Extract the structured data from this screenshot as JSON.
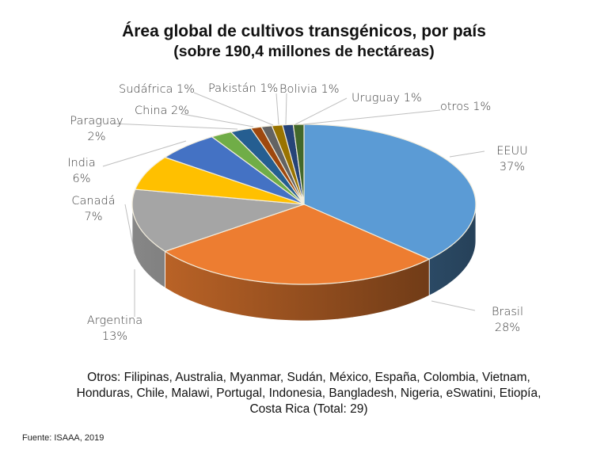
{
  "chart_data": {
    "type": "pie",
    "title": "Área global de cultivos transgénicos, por país",
    "subtitle": "(sobre 190,4 millones de hectáreas)",
    "categories": [
      "EEUU",
      "Brasil",
      "Argentina",
      "Canadá",
      "India",
      "Paraguay",
      "China",
      "Sudáfrica",
      "Pakistán",
      "Bolivia",
      "Uruguay",
      "otros"
    ],
    "values": [
      37,
      28,
      13,
      7,
      6,
      2,
      2,
      1,
      1,
      1,
      1,
      1
    ],
    "unit": "%",
    "colors": [
      "#5b9bd5",
      "#ed7d31",
      "#a5a5a5",
      "#ffc000",
      "#4472c4",
      "#70ad47",
      "#255e91",
      "#9e480e",
      "#636363",
      "#997300",
      "#264478",
      "#43682b"
    ],
    "labels": [
      {
        "name": "EEUU",
        "pct": "37%"
      },
      {
        "name": "Brasil",
        "pct": "28%"
      },
      {
        "name": "Argentina",
        "pct": "13%"
      },
      {
        "name": "Canadá",
        "pct": "7%"
      },
      {
        "name": "India",
        "pct": "6%"
      },
      {
        "name": "Paraguay",
        "pct": "2%"
      },
      {
        "name": "China 2%",
        "pct": ""
      },
      {
        "name": "Sudáfrica 1%",
        "pct": ""
      },
      {
        "name": "Pakistán 1%",
        "pct": ""
      },
      {
        "name": "Bolivia 1%",
        "pct": ""
      },
      {
        "name": "Uruguay 1%",
        "pct": ""
      },
      {
        "name": "otros 1%",
        "pct": ""
      }
    ],
    "style": "3d-pie",
    "legend": "none (data labels with leader lines)"
  },
  "footnote": {
    "line1": "Otros: Filipinas, Australia, Myanmar, Sudán, México, España, Colombia, Vietnam,",
    "line2": "Honduras, Chile, Malawi, Portugal, Indonesia, Bangladesh, Nigeria, eSwatini, Etiopía,",
    "line3": "Costa Rica (Total: 29)"
  },
  "source": "Fuente: ISAAA, 2019"
}
